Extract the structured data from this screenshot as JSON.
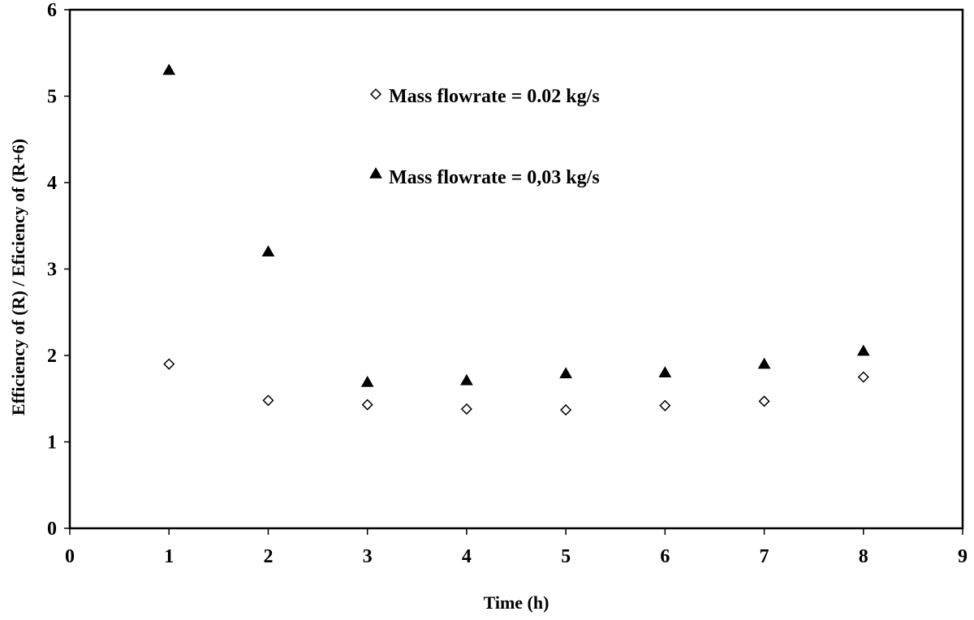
{
  "chart_data": {
    "type": "scatter",
    "title": "",
    "xlabel": "Time (h)",
    "ylabel": "Efficiency of (R) / Eficiency of (R+6)",
    "xlim": [
      0,
      9
    ],
    "ylim": [
      0,
      6
    ],
    "x_ticks": [
      0,
      1,
      2,
      3,
      4,
      5,
      6,
      7,
      8,
      9
    ],
    "y_ticks": [
      0,
      1,
      2,
      3,
      4,
      5,
      6
    ],
    "grid": false,
    "legend_position": "top-center",
    "series": [
      {
        "name": "Mass flowrate = 0.02 kg/s",
        "marker": "diamond-open",
        "color": "#000000",
        "x": [
          1,
          2,
          3,
          4,
          5,
          6,
          7,
          8
        ],
        "y": [
          1.9,
          1.48,
          1.43,
          1.38,
          1.37,
          1.42,
          1.47,
          1.75
        ]
      },
      {
        "name": "Mass flowrate = 0,03 kg/s",
        "marker": "triangle-filled",
        "color": "#000000",
        "x": [
          1,
          2,
          3,
          4,
          5,
          6,
          7,
          8
        ],
        "y": [
          5.3,
          3.2,
          1.69,
          1.71,
          1.79,
          1.8,
          1.9,
          2.05
        ]
      }
    ]
  }
}
